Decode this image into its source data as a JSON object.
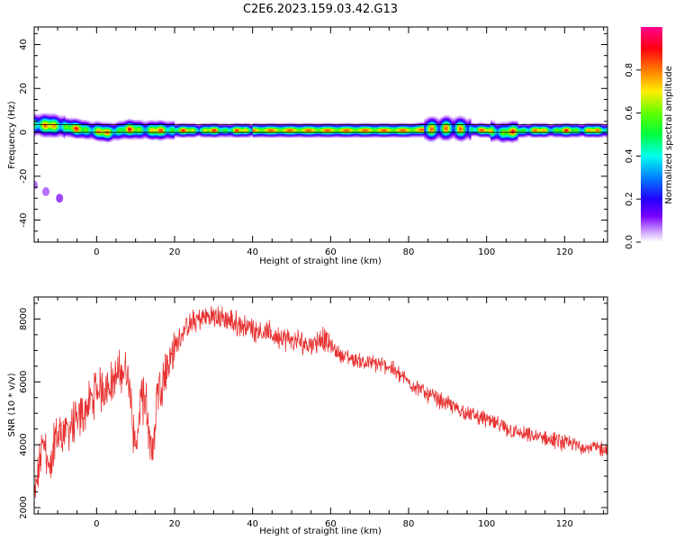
{
  "figure_title": "C2E6.2023.159.03.42.G13",
  "chart_data": [
    {
      "type": "heatmap",
      "title": "",
      "xlabel": "Height of straight line (km)",
      "ylabel": "Frequency (Hz)",
      "xlim": [
        -16,
        131
      ],
      "ylim": [
        -50,
        48
      ],
      "x_ticks": [
        0,
        20,
        40,
        60,
        80,
        100,
        120
      ],
      "y_ticks": [
        -40,
        -20,
        0,
        20,
        40
      ],
      "colorbar": {
        "label": "Normalized spectral amplitude",
        "range": [
          0,
          1
        ],
        "ticks": [
          0.0,
          0.2,
          0.4,
          0.6,
          0.8
        ],
        "colormap": "gist_rainbow_r (purple → blue → cyan → green → yellow → red → magenta)"
      },
      "horizontal_lines_hz": [
        0,
        3.5
      ],
      "ridge_frequency_hz": [
        {
          "x": -16,
          "f": 3.5
        },
        {
          "x": -10,
          "f": 3.0
        },
        {
          "x": -4,
          "f": 1.5
        },
        {
          "x": 3,
          "f": 0.0
        },
        {
          "x": 8,
          "f": 1.5
        },
        {
          "x": 14,
          "f": 1.0
        },
        {
          "x": 20,
          "f": 1.0
        },
        {
          "x": 40,
          "f": 1.0
        },
        {
          "x": 60,
          "f": 1.0
        },
        {
          "x": 80,
          "f": 1.0
        },
        {
          "x": 90,
          "f": 2.0
        },
        {
          "x": 100,
          "f": 1.0
        },
        {
          "x": 104,
          "f": 0.0
        },
        {
          "x": 110,
          "f": 1.0
        },
        {
          "x": 131,
          "f": 1.0
        }
      ],
      "isolated_blobs": [
        {
          "x": -9.5,
          "f": -30,
          "amplitude": 0.05
        },
        {
          "x": -16,
          "f": -24,
          "amplitude": 0.03
        },
        {
          "x": -13,
          "f": -27,
          "amplitude": 0.03
        }
      ]
    },
    {
      "type": "line",
      "title": "",
      "xlabel": "Height of straight line (km)",
      "ylabel": "SNR (10 * v/v)",
      "xlim": [
        -16,
        131
      ],
      "ylim": [
        1800,
        8700
      ],
      "x_ticks": [
        0,
        20,
        40,
        60,
        80,
        100,
        120
      ],
      "y_ticks": [
        2000,
        4000,
        6000,
        8000
      ],
      "color": "#e83030",
      "envelope": [
        {
          "x": -16,
          "y": 2200
        },
        {
          "x": -14,
          "y": 3900
        },
        {
          "x": -10,
          "y": 4300
        },
        {
          "x": -5,
          "y": 4700
        },
        {
          "x": 0,
          "y": 5700
        },
        {
          "x": 4,
          "y": 6000
        },
        {
          "x": 7,
          "y": 6400
        },
        {
          "x": 10,
          "y": 5800
        },
        {
          "x": 13,
          "y": 5300
        },
        {
          "x": 16,
          "y": 5800
        },
        {
          "x": 19,
          "y": 6800
        },
        {
          "x": 22,
          "y": 7600
        },
        {
          "x": 26,
          "y": 8000
        },
        {
          "x": 30,
          "y": 8100
        },
        {
          "x": 35,
          "y": 7900
        },
        {
          "x": 40,
          "y": 7700
        },
        {
          "x": 45,
          "y": 7500
        },
        {
          "x": 50,
          "y": 7300
        },
        {
          "x": 55,
          "y": 7200
        },
        {
          "x": 58,
          "y": 7400
        },
        {
          "x": 62,
          "y": 6900
        },
        {
          "x": 66,
          "y": 6700
        },
        {
          "x": 70,
          "y": 6600
        },
        {
          "x": 75,
          "y": 6500
        },
        {
          "x": 80,
          "y": 6000
        },
        {
          "x": 85,
          "y": 5600
        },
        {
          "x": 90,
          "y": 5300
        },
        {
          "x": 95,
          "y": 5000
        },
        {
          "x": 100,
          "y": 4800
        },
        {
          "x": 105,
          "y": 4500
        },
        {
          "x": 110,
          "y": 4300
        },
        {
          "x": 115,
          "y": 4200
        },
        {
          "x": 120,
          "y": 4050
        },
        {
          "x": 125,
          "y": 3950
        },
        {
          "x": 131,
          "y": 3850
        }
      ],
      "dips": [
        {
          "x": -12,
          "y": 2700
        },
        {
          "x": 10,
          "y": 3700
        },
        {
          "x": 14,
          "y": 3500
        }
      ]
    }
  ]
}
